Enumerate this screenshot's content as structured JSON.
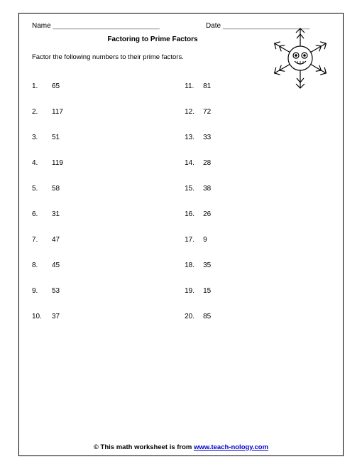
{
  "header": {
    "name_label": "Name",
    "name_line": "___________________________",
    "date_label": "Date",
    "date_line": "______________________"
  },
  "title": "Factoring to Prime Factors",
  "instructions": "Factor the following numbers to their prime factors.",
  "problems_left": [
    {
      "n": "1.",
      "v": "65"
    },
    {
      "n": "2.",
      "v": "117"
    },
    {
      "n": "3.",
      "v": "51"
    },
    {
      "n": "4.",
      "v": "119"
    },
    {
      "n": "5.",
      "v": "58"
    },
    {
      "n": "6.",
      "v": "31"
    },
    {
      "n": "7.",
      "v": "47"
    },
    {
      "n": "8.",
      "v": "45"
    },
    {
      "n": "9.",
      "v": "53"
    },
    {
      "n": "10.",
      "v": "37"
    }
  ],
  "problems_right": [
    {
      "n": "11.",
      "v": "81"
    },
    {
      "n": "12.",
      "v": "72"
    },
    {
      "n": "13.",
      "v": "33"
    },
    {
      "n": "14.",
      "v": "28"
    },
    {
      "n": "15.",
      "v": "38"
    },
    {
      "n": "16.",
      "v": "26"
    },
    {
      "n": "17.",
      "v": "9"
    },
    {
      "n": "18.",
      "v": "35"
    },
    {
      "n": "19.",
      "v": "15"
    },
    {
      "n": "20.",
      "v": "85"
    }
  ],
  "footer": {
    "prefix": "© This math worksheet is from ",
    "link_text": "www.teach-nology.com"
  }
}
